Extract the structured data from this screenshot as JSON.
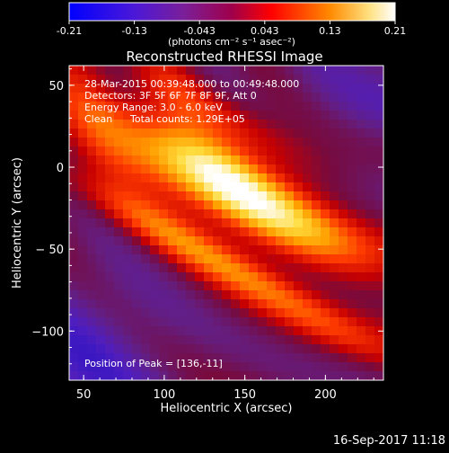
{
  "colorbar": {
    "tick_labels": [
      "-0.21",
      "-0.13",
      "-0.043",
      "0.043",
      "0.13",
      "0.21"
    ],
    "unit_label": "(photons cm⁻² s⁻¹ asec⁻²)",
    "range": [
      -0.21,
      0.21
    ]
  },
  "title": "Reconstructed RHESSI Image",
  "info": {
    "time_range": "28-Mar-2015 00:39:48.000 to 00:49:48.000",
    "detectors": "Detectors: 3F 5F 6F 7F 8F 9F, Att 0",
    "energy": "Energy Range: 3.0 - 6.0 keV",
    "method": "Clean",
    "counts": "Total counts: 1.29E+05",
    "peak": "Position of Peak = [136,-11]"
  },
  "footer": {
    "timestamp": "16-Sep-2017 11:18"
  },
  "chart_data": {
    "type": "heatmap",
    "title": "Reconstructed RHESSI Image",
    "xlabel": "Heliocentric X (arcsec)",
    "ylabel": "Heliocentric Y (arcsec)",
    "xlim": [
      41,
      236
    ],
    "ylim": [
      -130,
      62
    ],
    "x_ticks": [
      50,
      100,
      150,
      200
    ],
    "y_ticks": [
      50,
      0,
      -50,
      -100
    ],
    "x_tick_labels": [
      "50",
      "100",
      "150",
      "200"
    ],
    "y_tick_labels": [
      "50",
      "0",
      "− 50",
      "−100"
    ],
    "peak_position": [
      136,
      -11
    ],
    "colormap": [
      "#0000ff",
      "#6a26c9",
      "#8c1a6e",
      "#ff0000",
      "#ff7a00",
      "#ffffff"
    ]
  }
}
